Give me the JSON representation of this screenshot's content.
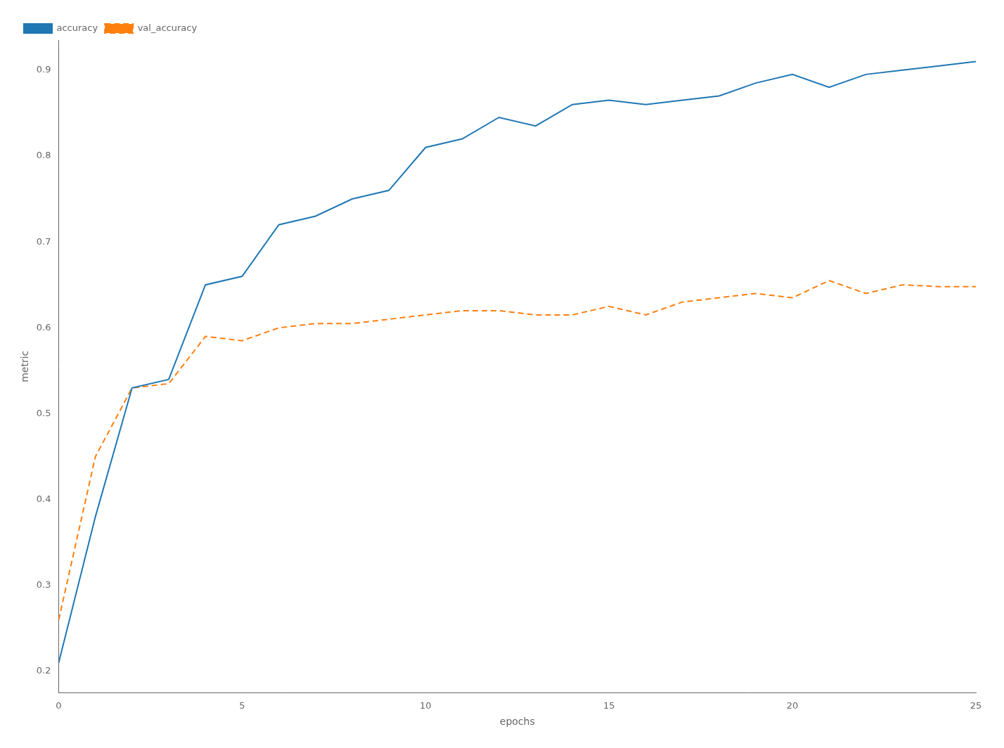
{
  "chart_data": {
    "type": "line",
    "x": [
      0,
      1,
      2,
      3,
      4,
      5,
      6,
      7,
      8,
      9,
      10,
      11,
      12,
      13,
      14,
      15,
      16,
      17,
      18,
      19,
      20,
      21,
      22,
      23,
      24,
      25
    ],
    "series": [
      {
        "name": "accuracy",
        "color": "#1f77b4",
        "line_style": "solid",
        "values": [
          0.21,
          0.38,
          0.53,
          0.54,
          0.65,
          0.66,
          0.72,
          0.73,
          0.75,
          0.76,
          0.81,
          0.82,
          0.845,
          0.835,
          0.86,
          0.865,
          0.86,
          0.865,
          0.87,
          0.885,
          0.895,
          0.88,
          0.895,
          0.9,
          0.905,
          0.91
        ]
      },
      {
        "name": "val_accuracy",
        "color": "#ff7f0e",
        "line_style": "dashed",
        "values": [
          0.26,
          0.45,
          0.53,
          0.535,
          0.59,
          0.585,
          0.6,
          0.605,
          0.605,
          0.61,
          0.615,
          0.62,
          0.62,
          0.615,
          0.615,
          0.625,
          0.615,
          0.63,
          0.635,
          0.64,
          0.635,
          0.655,
          0.64,
          0.65,
          0.648,
          0.648
        ]
      }
    ],
    "xlabel": "epochs",
    "ylabel": "metric",
    "xlim": [
      0,
      25
    ],
    "ylim": [
      0.175,
      0.935
    ],
    "xticks": [
      0,
      5,
      10,
      15,
      20,
      25
    ],
    "yticks": [
      0.2,
      0.3,
      0.4,
      0.5,
      0.6,
      0.7,
      0.8,
      0.9
    ],
    "grid": false,
    "legend": "upper left"
  }
}
